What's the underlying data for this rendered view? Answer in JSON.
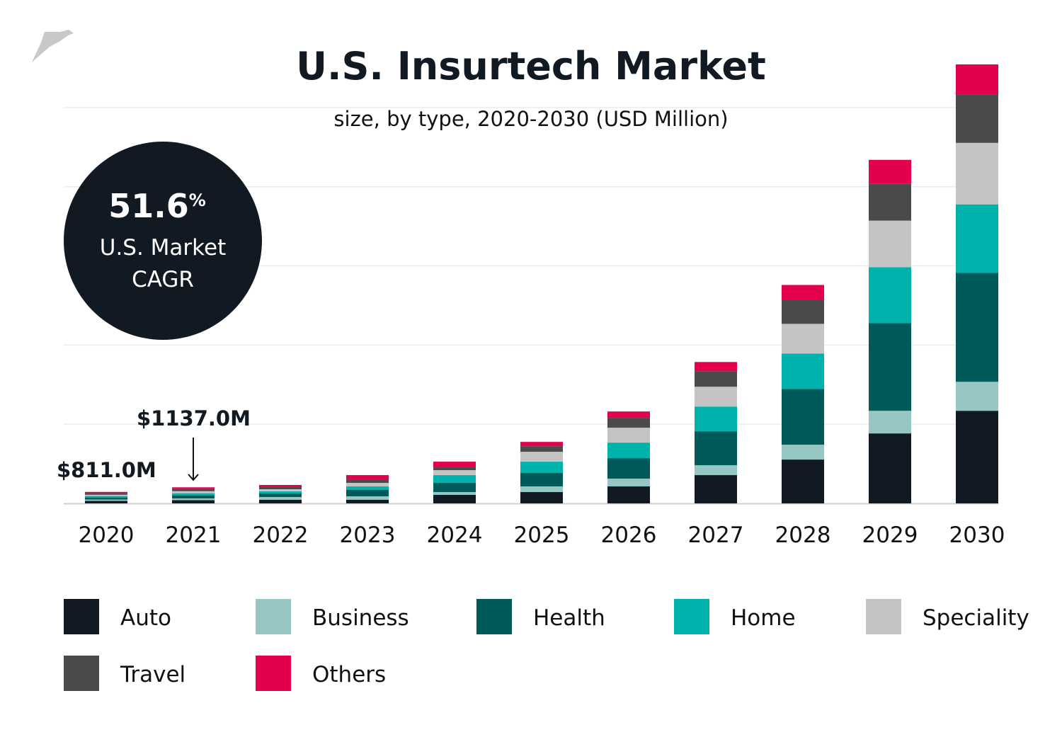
{
  "chart_data": {
    "type": "bar",
    "stacked": true,
    "title": "U.S. Insurtech Market",
    "subtitle": "size, by type, 2020-2030 (USD Million)",
    "xlabel": "",
    "ylabel": "",
    "ylim": [
      0,
      31100
    ],
    "grid": true,
    "legend_position": "bottom",
    "categories": [
      "2020",
      "2021",
      "2022",
      "2023",
      "2024",
      "2025",
      "2026",
      "2027",
      "2028",
      "2029",
      "2030"
    ],
    "series": [
      {
        "name": "Auto",
        "color": "#111a22",
        "values": [
          180,
          230,
          250,
          250,
          600,
          800,
          1200,
          2000,
          3100,
          4950,
          6550
        ]
      },
      {
        "name": "Business",
        "color": "#97c7c4",
        "values": [
          90,
          120,
          200,
          250,
          200,
          400,
          550,
          700,
          1050,
          1600,
          2050
        ]
      },
      {
        "name": "Health",
        "color": "#005a59",
        "values": [
          150,
          220,
          250,
          450,
          650,
          950,
          1450,
          2400,
          3950,
          6200,
          7700
        ]
      },
      {
        "name": "Home",
        "color": "#00b2ac",
        "values": [
          100,
          150,
          150,
          250,
          550,
          800,
          1100,
          1750,
          2500,
          3950,
          4850
        ]
      },
      {
        "name": "Speciality",
        "color": "#c4c4c4",
        "values": [
          90,
          140,
          150,
          250,
          350,
          700,
          1050,
          1400,
          2100,
          3300,
          4350
        ]
      },
      {
        "name": "Travel",
        "color": "#4a4a4a",
        "values": [
          120,
          160,
          150,
          250,
          200,
          400,
          700,
          1100,
          1700,
          2600,
          3400
        ]
      },
      {
        "name": "Others",
        "color": "#e2004f",
        "values": [
          81,
          117,
          150,
          300,
          400,
          300,
          450,
          650,
          1050,
          1700,
          2150
        ]
      }
    ],
    "annotations": [
      {
        "category": "2020",
        "text": "$811.0M"
      },
      {
        "category": "2021",
        "text": "$1137.0M",
        "arrow": true
      }
    ]
  },
  "badge": {
    "value": "51.6",
    "unit": "%",
    "line1": "U.S. Market",
    "line2": "CAGR",
    "color": "#111a22"
  },
  "logo": {
    "icon": "origami-bird-icon",
    "color": "#c8c8c8"
  }
}
